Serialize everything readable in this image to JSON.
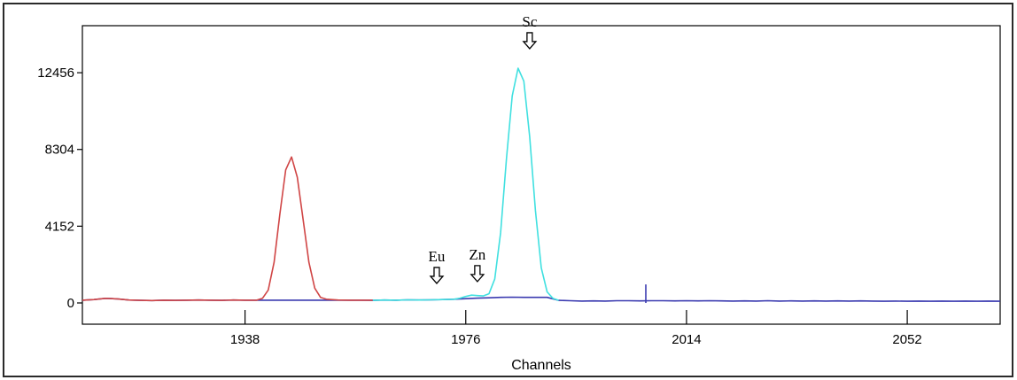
{
  "chart_data": {
    "type": "line",
    "title": "",
    "xlabel": "Channels",
    "ylabel": "",
    "xlim": [
      1910,
      2068
    ],
    "ylim": [
      0,
      15000
    ],
    "x_ticks": [
      1938,
      1976,
      2014,
      2052
    ],
    "y_ticks": [
      0,
      4152,
      8304,
      12456
    ],
    "grid": false,
    "legend": "none",
    "colors": {
      "axis": "#000000",
      "frame": "#2a2a2a",
      "roi_red": "#d04545",
      "roi_cyan": "#40e0e0",
      "background_trace": "#3a3ab0"
    },
    "series": [
      {
        "color": "#3a3ab0",
        "x": [
          1910,
          1912,
          1914,
          1916,
          1918,
          1920,
          1922,
          1924,
          1926,
          1928,
          1930,
          1932,
          1934,
          1936,
          1938,
          1940,
          1942,
          1944,
          1946,
          1948,
          1950,
          1952,
          1954,
          1956,
          1958,
          1960,
          1962,
          1964,
          1966,
          1968,
          1970,
          1972,
          1974,
          1976,
          1978,
          1980,
          1982,
          1984,
          1986,
          1988,
          1990,
          1992,
          1994,
          1996,
          1998,
          2000,
          2002,
          2004,
          2006,
          2008,
          2010,
          2012,
          2014,
          2016,
          2018,
          2020,
          2022,
          2024,
          2026,
          2028,
          2030,
          2032,
          2034,
          2036,
          2038,
          2040,
          2042,
          2044,
          2046,
          2048,
          2050,
          2052,
          2054,
          2056,
          2058,
          2060,
          2062,
          2064,
          2066,
          2068
        ],
        "y": [
          150,
          180,
          250,
          220,
          160,
          140,
          130,
          150,
          140,
          150,
          160,
          150,
          140,
          160,
          150,
          150,
          150,
          150,
          150,
          150,
          150,
          150,
          150,
          150,
          150,
          140,
          160,
          150,
          170,
          160,
          170,
          180,
          200,
          230,
          260,
          280,
          300,
          310,
          300,
          300,
          300,
          140,
          120,
          100,
          110,
          100,
          120,
          120,
          110,
          120,
          120,
          110,
          120,
          110,
          120,
          110,
          100,
          110,
          100,
          120,
          100,
          110,
          100,
          110,
          100,
          110,
          100,
          110,
          100,
          90,
          100,
          90,
          100,
          90,
          100,
          90,
          100,
          90,
          100,
          90
        ]
      },
      {
        "color": "#d04545",
        "x": [
          1910,
          1912,
          1914,
          1916,
          1918,
          1920,
          1922,
          1924,
          1926,
          1928,
          1930,
          1932,
          1934,
          1936,
          1938,
          1940,
          1941,
          1942,
          1943,
          1944,
          1945,
          1946,
          1947,
          1948,
          1949,
          1950,
          1951,
          1952,
          1954,
          1956,
          1958,
          1960
        ],
        "y": [
          150,
          180,
          250,
          220,
          160,
          140,
          130,
          150,
          140,
          150,
          160,
          150,
          140,
          160,
          150,
          150,
          250,
          700,
          2200,
          4800,
          7200,
          7900,
          6800,
          4500,
          2200,
          800,
          300,
          200,
          160,
          150,
          150,
          150
        ]
      },
      {
        "color": "#40e0e0",
        "x": [
          1960,
          1962,
          1964,
          1966,
          1968,
          1970,
          1972,
          1974,
          1975,
          1976,
          1977,
          1978,
          1979,
          1980,
          1981,
          1982,
          1983,
          1984,
          1985,
          1986,
          1987,
          1988,
          1989,
          1990,
          1991,
          1992
        ],
        "y": [
          140,
          160,
          150,
          170,
          160,
          170,
          180,
          200,
          260,
          350,
          420,
          400,
          380,
          500,
          1300,
          3800,
          7800,
          11200,
          12700,
          12000,
          9000,
          5000,
          1900,
          600,
          250,
          140
        ]
      },
      {
        "color": "#3a3ab0",
        "x": [
          2007,
          2007
        ],
        "y": [
          0,
          1000
        ]
      }
    ],
    "annotations": [
      {
        "text": "Eu",
        "x": 1971,
        "y": 1200
      },
      {
        "text": "Zn",
        "x": 1978,
        "y": 1300
      },
      {
        "text": "Sc",
        "x": 1987,
        "y": 13900
      }
    ]
  }
}
